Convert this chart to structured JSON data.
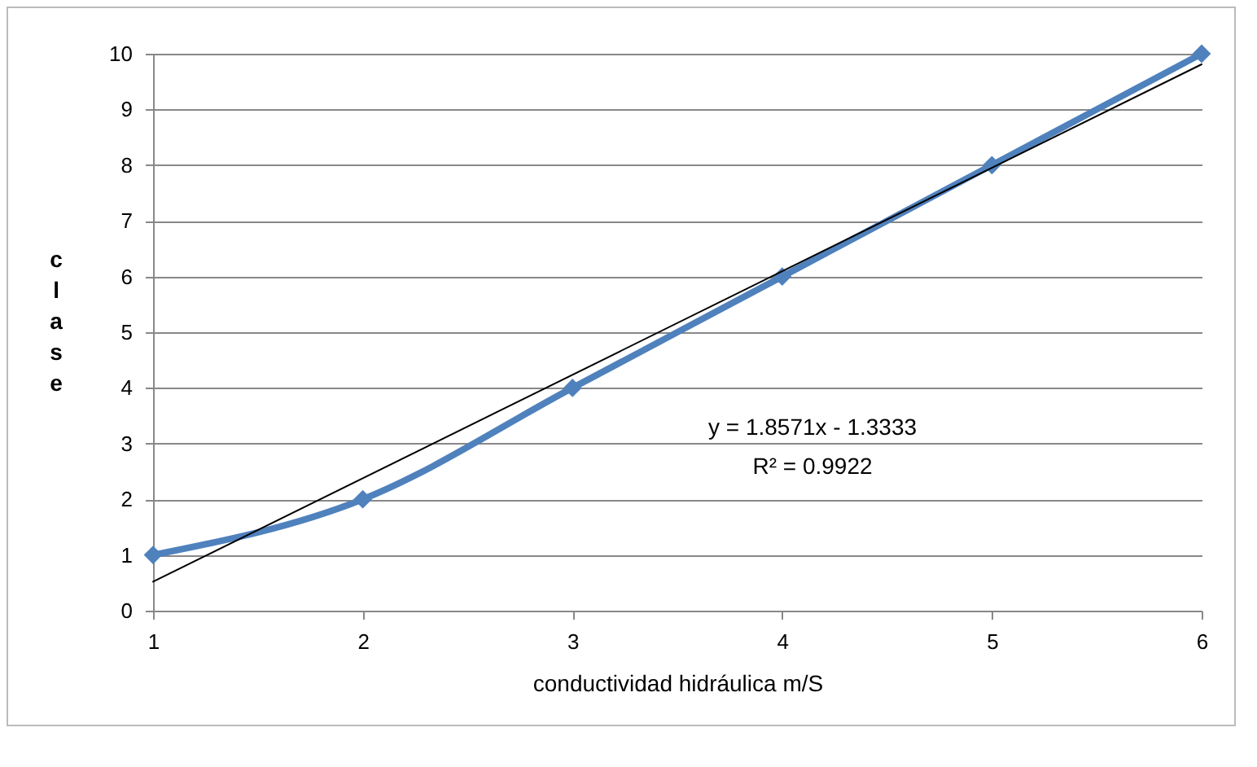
{
  "chart_data": {
    "type": "line",
    "xlabel": "conductividad  hidráulica  m/S",
    "ylabel": "clase",
    "x": [
      1,
      2,
      3,
      4,
      5,
      6
    ],
    "series": [
      {
        "color": "#4f81bd",
        "values": [
          1,
          2,
          4,
          6,
          8,
          10
        ],
        "marker": "diamond"
      },
      {
        "type": "line",
        "color": "#000000",
        "x": [
          1,
          6
        ],
        "values": [
          0.52,
          9.81
        ],
        "marker": "none"
      }
    ],
    "xlim": [
      1,
      6
    ],
    "xticks": [
      1,
      2,
      3,
      4,
      5,
      6
    ],
    "ylim": [
      0,
      10
    ],
    "yticks": [
      0,
      1,
      2,
      3,
      4,
      5,
      6,
      7,
      8,
      9,
      10
    ],
    "grid": "y",
    "annotations": [
      "y = 1.8571x - 1.3333",
      "R² = 0.9922"
    ]
  }
}
